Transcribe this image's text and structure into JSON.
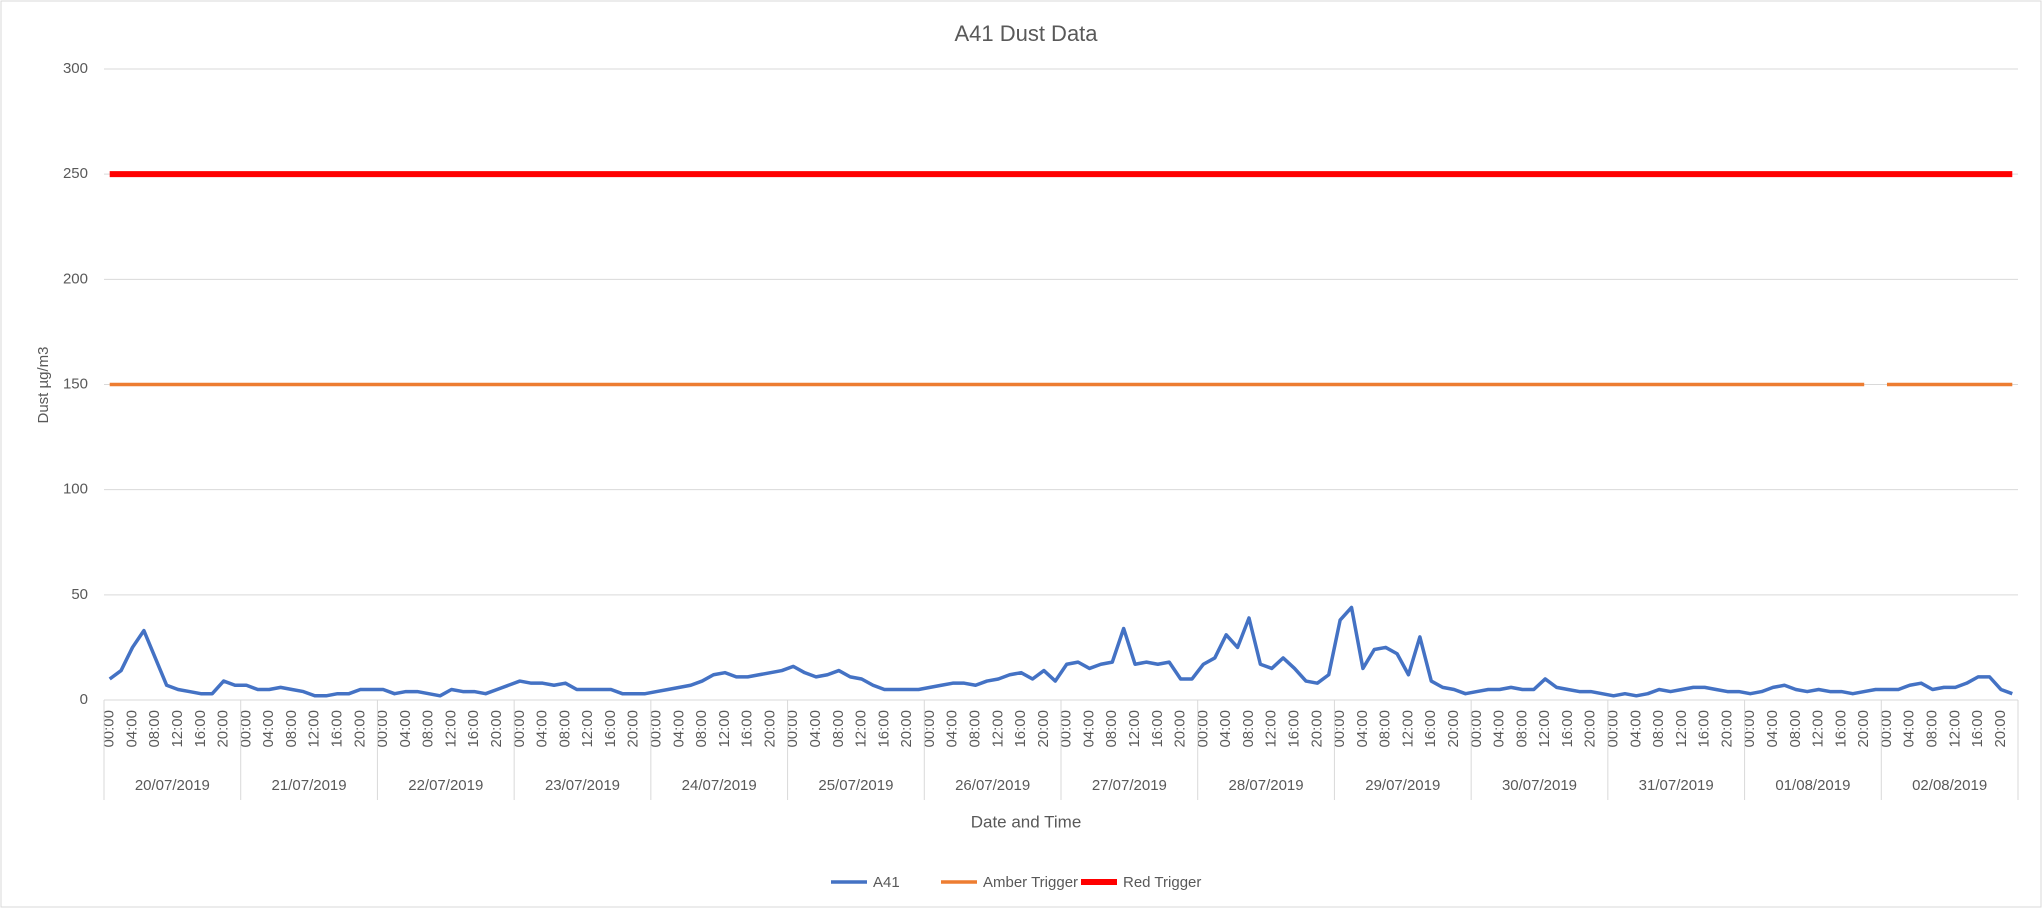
{
  "chart_data": {
    "type": "line",
    "title": "A41 Dust Data",
    "xlabel": "Date and Time",
    "ylabel": "Dust µg/m3",
    "categories": [
      "00:00",
      null,
      "04:00",
      null,
      "08:00",
      null,
      "12:00",
      null,
      "16:00",
      null,
      "20:00",
      null,
      "00:00",
      null,
      "04:00",
      null,
      "08:00",
      null,
      "12:00",
      null,
      "16:00",
      null,
      "20:00",
      null,
      "00:00",
      null,
      "04:00",
      null,
      "08:00",
      null,
      "12:00",
      null,
      "16:00",
      null,
      "20:00",
      null,
      "00:00",
      null,
      "04:00",
      null,
      "08:00",
      null,
      "12:00",
      null,
      "16:00",
      null,
      "20:00",
      null,
      "00:00",
      null,
      "04:00",
      null,
      "08:00",
      null,
      "12:00",
      null,
      "16:00",
      null,
      "20:00",
      null,
      "00:00",
      null,
      "04:00",
      null,
      "08:00",
      null,
      "12:00",
      null,
      "16:00",
      null,
      "20:00",
      null,
      "00:00",
      null,
      "04:00",
      null,
      "08:00",
      null,
      "12:00",
      null,
      "16:00",
      null,
      "20:00",
      null,
      "00:00",
      null,
      "04:00",
      null,
      "08:00",
      null,
      "12:00",
      null,
      "16:00",
      null,
      "20:00",
      null,
      "00:00",
      null,
      "04:00",
      null,
      "08:00",
      null,
      "12:00",
      null,
      "16:00",
      null,
      "20:00",
      null,
      "00:00",
      null,
      "04:00",
      null,
      "08:00",
      null,
      "12:00",
      null,
      "16:00",
      null,
      "20:00",
      null,
      "00:00",
      null,
      "04:00",
      null,
      "08:00",
      null,
      "12:00",
      null,
      "16:00",
      null,
      "20:00",
      null,
      "00:00",
      null,
      "04:00",
      null,
      "08:00",
      null,
      "12:00",
      null,
      "16:00",
      null,
      "20:00",
      null,
      "00:00",
      null,
      "04:00",
      null,
      "08:00",
      null,
      "12:00",
      null,
      "16:00",
      null,
      "20:00",
      null,
      "00:00",
      null,
      "04:00",
      null,
      "08:00",
      null,
      "12:00",
      null,
      "16:00",
      null,
      "20:00",
      null
    ],
    "date_groups": [
      "20/07/2019",
      "21/07/2019",
      "22/07/2019",
      "23/07/2019",
      "24/07/2019",
      "25/07/2019",
      "26/07/2019",
      "27/07/2019",
      "28/07/2019",
      "29/07/2019",
      "30/07/2019",
      "31/07/2019",
      "01/08/2019",
      "02/08/2019"
    ],
    "series": [
      {
        "name": "A41",
        "color": "#4472c4",
        "width": 3.5,
        "values": [
          10,
          14,
          25,
          33,
          20,
          7,
          5,
          4,
          3,
          3,
          9,
          7,
          7,
          5,
          5,
          6,
          5,
          4,
          2,
          2,
          3,
          3,
          5,
          5,
          5,
          3,
          4,
          4,
          3,
          2,
          5,
          4,
          4,
          3,
          5,
          7,
          9,
          8,
          8,
          7,
          8,
          5,
          5,
          5,
          5,
          3,
          3,
          3,
          4,
          5,
          6,
          7,
          9,
          12,
          13,
          11,
          11,
          12,
          13,
          14,
          16,
          13,
          11,
          12,
          14,
          11,
          10,
          7,
          5,
          5,
          5,
          5,
          6,
          7,
          8,
          8,
          7,
          9,
          10,
          12,
          13,
          10,
          14,
          9,
          17,
          18,
          15,
          17,
          18,
          34,
          17,
          18,
          17,
          18,
          10,
          10,
          17,
          20,
          31,
          25,
          39,
          17,
          15,
          20,
          15,
          9,
          8,
          12,
          38,
          44,
          15,
          24,
          25,
          22,
          12,
          30,
          9,
          6,
          5,
          3,
          4,
          5,
          5,
          6,
          5,
          5,
          10,
          6,
          5,
          4,
          4,
          3,
          2,
          3,
          2,
          3,
          5,
          4,
          5,
          6,
          6,
          5,
          4,
          4,
          3,
          4,
          6,
          7,
          5,
          4,
          5,
          4,
          4,
          3,
          4,
          5,
          5,
          5,
          7,
          8,
          5,
          6,
          6,
          8,
          11,
          11,
          5,
          3
        ]
      },
      {
        "name": "Amber Trigger",
        "color": "#ed7d31",
        "width": 3.5,
        "values": [
          150,
          150,
          150,
          150,
          150,
          150,
          150,
          150,
          150,
          150,
          150,
          150,
          150,
          150,
          150,
          150,
          150,
          150,
          150,
          150,
          150,
          150,
          150,
          150,
          150,
          150,
          150,
          150,
          150,
          150,
          150,
          150,
          150,
          150,
          150,
          150,
          150,
          150,
          150,
          150,
          150,
          150,
          150,
          150,
          150,
          150,
          150,
          150,
          150,
          150,
          150,
          150,
          150,
          150,
          150,
          150,
          150,
          150,
          150,
          150,
          150,
          150,
          150,
          150,
          150,
          150,
          150,
          150,
          150,
          150,
          150,
          150,
          150,
          150,
          150,
          150,
          150,
          150,
          150,
          150,
          150,
          150,
          150,
          150,
          150,
          150,
          150,
          150,
          150,
          150,
          150,
          150,
          150,
          150,
          150,
          150,
          150,
          150,
          150,
          150,
          150,
          150,
          150,
          150,
          150,
          150,
          150,
          150,
          150,
          150,
          150,
          150,
          150,
          150,
          150,
          150,
          150,
          150,
          150,
          150,
          150,
          150,
          150,
          150,
          150,
          150,
          150,
          150,
          150,
          150,
          150,
          150,
          150,
          150,
          150,
          150,
          150,
          150,
          150,
          150,
          150,
          150,
          150,
          150,
          150,
          150,
          150,
          150,
          150,
          150,
          150,
          150,
          150,
          150,
          150,
          null,
          150,
          150,
          150,
          150,
          150,
          150,
          150,
          150,
          150,
          150,
          150,
          150
        ]
      },
      {
        "name": "Red Trigger",
        "color": "#ff0000",
        "width": 6,
        "values": [
          250,
          250,
          250,
          250,
          250,
          250,
          250,
          250,
          250,
          250,
          250,
          250,
          250,
          250,
          250,
          250,
          250,
          250,
          250,
          250,
          250,
          250,
          250,
          250,
          250,
          250,
          250,
          250,
          250,
          250,
          250,
          250,
          250,
          250,
          250,
          250,
          250,
          250,
          250,
          250,
          250,
          250,
          250,
          250,
          250,
          250,
          250,
          250,
          250,
          250,
          250,
          250,
          250,
          250,
          250,
          250,
          250,
          250,
          250,
          250,
          250,
          250,
          250,
          250,
          250,
          250,
          250,
          250,
          250,
          250,
          250,
          250,
          250,
          250,
          250,
          250,
          250,
          250,
          250,
          250,
          250,
          250,
          250,
          250,
          250,
          250,
          250,
          250,
          250,
          250,
          250,
          250,
          250,
          250,
          250,
          250,
          250,
          250,
          250,
          250,
          250,
          250,
          250,
          250,
          250,
          250,
          250,
          250,
          250,
          250,
          250,
          250,
          250,
          250,
          250,
          250,
          250,
          250,
          250,
          250,
          250,
          250,
          250,
          250,
          250,
          250,
          250,
          250,
          250,
          250,
          250,
          250,
          250,
          250,
          250,
          250,
          250,
          250,
          250,
          250,
          250,
          250,
          250,
          250,
          250,
          250,
          250,
          250,
          250,
          250,
          250,
          250,
          250,
          250,
          250,
          250,
          250,
          250,
          250,
          250,
          250,
          250,
          250,
          250,
          250,
          250,
          250,
          250
        ]
      }
    ],
    "ylim": [
      0,
      300
    ],
    "yticks": [
      0,
      50,
      100,
      150,
      200,
      250,
      300
    ],
    "grid": true,
    "legend": "bottom"
  }
}
